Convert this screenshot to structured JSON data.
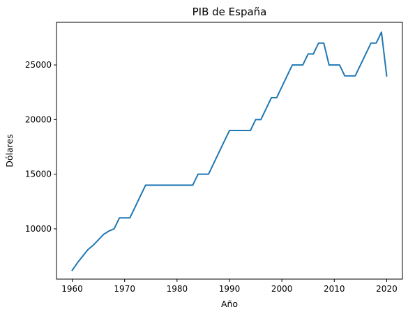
{
  "chart_data": {
    "type": "line",
    "title": "PIB de España",
    "xlabel": "Año",
    "ylabel": "Dólares",
    "xlim": [
      1957,
      2023
    ],
    "ylim": [
      5400,
      28900
    ],
    "x_ticks": [
      1960,
      1970,
      1980,
      1990,
      2000,
      2010,
      2020
    ],
    "y_ticks": [
      10000,
      15000,
      20000,
      25000
    ],
    "grid": false,
    "color": "#1f77b4",
    "series": [
      {
        "x": [
          1960,
          1961,
          1962,
          1963,
          1964,
          1965,
          1966,
          1967,
          1968,
          1969,
          1970,
          1971,
          1972,
          1973,
          1974,
          1975,
          1976,
          1977,
          1978,
          1979,
          1980,
          1981,
          1982,
          1983,
          1984,
          1985,
          1986,
          1987,
          1988,
          1989,
          1990,
          1991,
          1992,
          1993,
          1994,
          1995,
          1996,
          1997,
          1998,
          1999,
          2000,
          2001,
          2002,
          2003,
          2004,
          2005,
          2006,
          2007,
          2008,
          2009,
          2010,
          2011,
          2012,
          2013,
          2014,
          2015,
          2016,
          2017,
          2018,
          2019,
          2020
        ],
        "y": [
          6200,
          6900,
          7500,
          8100,
          8500,
          9000,
          9500,
          9800,
          10000,
          11000,
          11000,
          11000,
          12000,
          13000,
          14000,
          14000,
          14000,
          14000,
          14000,
          14000,
          14000,
          14000,
          14000,
          14000,
          15000,
          15000,
          15000,
          16000,
          17000,
          18000,
          19000,
          19000,
          19000,
          19000,
          19000,
          20000,
          20000,
          21000,
          22000,
          22000,
          23000,
          24000,
          25000,
          25000,
          25000,
          26000,
          26000,
          27000,
          27000,
          25000,
          25000,
          25000,
          24000,
          24000,
          24000,
          25000,
          26000,
          27000,
          27000,
          28000,
          24000
        ]
      }
    ]
  }
}
